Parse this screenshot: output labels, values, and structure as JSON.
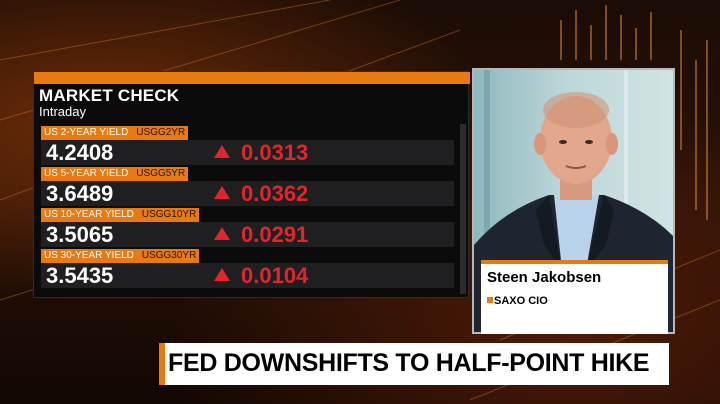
{
  "market_check": {
    "title": "MARKET CHECK",
    "subtitle": "Intraday",
    "rows": [
      {
        "label": "US 2-YEAR YIELD",
        "code": "USGG2YR",
        "value": "4.2408",
        "change": "0.0313",
        "direction": "up"
      },
      {
        "label": "US 5-YEAR YIELD",
        "code": "USGG5YR",
        "value": "3.6489",
        "change": "0.0362",
        "direction": "up"
      },
      {
        "label": "US 10-YEAR YIELD",
        "code": "USGG10YR",
        "value": "3.5065",
        "change": "0.0291",
        "direction": "up"
      },
      {
        "label": "US 30-YEAR YIELD",
        "code": "USGG30YR",
        "value": "3.5435",
        "change": "0.0104",
        "direction": "up"
      }
    ]
  },
  "guest": {
    "name": "Steen Jakobsen",
    "title": "SAXO CIO"
  },
  "headline": "FED DOWNSHIFTS TO HALF-POINT HIKE",
  "colors": {
    "accent_orange": "#e87a12",
    "change_red": "#e1252b",
    "panel_bg": "#0b0b0c"
  },
  "icons": [
    "up-arrow-icon"
  ]
}
